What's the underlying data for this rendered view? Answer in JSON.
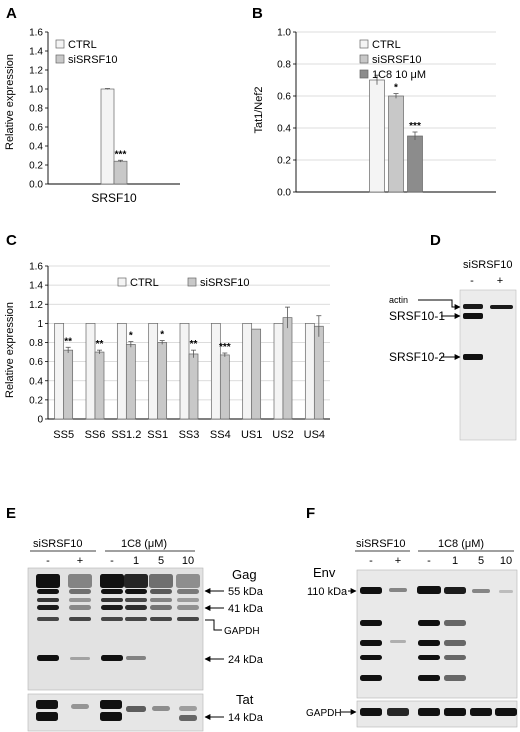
{
  "panels": {
    "A": {
      "label": "A"
    },
    "B": {
      "label": "B"
    },
    "C": {
      "label": "C"
    },
    "D": {
      "label": "D"
    },
    "E": {
      "label": "E"
    },
    "F": {
      "label": "F"
    }
  },
  "chart_data": [
    {
      "panel": "A",
      "type": "bar",
      "categories": [
        "SRSF10"
      ],
      "series": [
        {
          "name": "CTRL",
          "values": [
            1.0
          ],
          "errors": [
            0.005
          ],
          "color": "#f4f4f4",
          "stars": [
            ""
          ]
        },
        {
          "name": "siSRSF10",
          "values": [
            0.24
          ],
          "errors": [
            0.01
          ],
          "color": "#c8c8c8",
          "stars": [
            "***"
          ]
        }
      ],
      "ylabel": "Relative expression",
      "ylim": [
        0,
        1.6
      ],
      "yticks": [
        "0.0",
        "0.2",
        "0.4",
        "0.6",
        "0.8",
        "1.0",
        "1.2",
        "1.4",
        "1.6"
      ],
      "legend": "top-left"
    },
    {
      "panel": "B",
      "type": "bar",
      "categories": [
        ""
      ],
      "series": [
        {
          "name": "CTRL",
          "values": [
            0.7
          ],
          "errors": [
            0.03
          ],
          "color": "#f4f4f4",
          "stars": [
            ""
          ]
        },
        {
          "name": "siSRSF10",
          "values": [
            0.6
          ],
          "errors": [
            0.015
          ],
          "color": "#c8c8c8",
          "stars": [
            "*"
          ]
        },
        {
          "name": "1C8 10 μM",
          "values": [
            0.35
          ],
          "errors": [
            0.025
          ],
          "color": "#8c8c8c",
          "stars": [
            "***"
          ]
        }
      ],
      "ylabel": "Tat1/Nef2",
      "ylim": [
        0,
        1.0
      ],
      "yticks": [
        "0.0",
        "0.2",
        "0.4",
        "0.6",
        "0.8",
        "1.0"
      ],
      "legend": "top-right"
    },
    {
      "panel": "C",
      "type": "bar",
      "categories": [
        "SS5",
        "SS6",
        "SS1.2",
        "SS1",
        "SS3",
        "SS4",
        "US1",
        "US2",
        "US4"
      ],
      "series": [
        {
          "name": "CTRL",
          "values": [
            1,
            1,
            1,
            1,
            1,
            1,
            1,
            1,
            1
          ],
          "errors": [
            0,
            0,
            0,
            0,
            0,
            0,
            0,
            0,
            0
          ],
          "color": "#f4f4f4",
          "stars": [
            "",
            "",
            "",
            "",
            "",
            "",
            "",
            "",
            ""
          ]
        },
        {
          "name": "siSRSF10",
          "values": [
            0.72,
            0.7,
            0.78,
            0.8,
            0.68,
            0.67,
            0.94,
            1.06,
            0.97
          ],
          "errors": [
            0.03,
            0.02,
            0.03,
            0.02,
            0.04,
            0.02,
            0,
            0.11,
            0.11
          ],
          "color": "#c8c8c8",
          "stars": [
            "**",
            "**",
            "*",
            "*",
            "**",
            "***",
            "",
            "",
            ""
          ]
        }
      ],
      "ylabel": "Relative expression",
      "ylim": [
        0,
        1.6
      ],
      "yticks": [
        "0",
        "0.2",
        "0.4",
        "0.6",
        "0.8",
        "1",
        "1.2",
        "1.4",
        "1.6"
      ],
      "legend": "top-center"
    }
  ],
  "blotD": {
    "header": "siSRSF10",
    "lanes": [
      "-",
      "+"
    ],
    "labels": {
      "actin": "actin",
      "srsf10_1": "SRSF10-1",
      "srsf10_2": "SRSF10-2"
    }
  },
  "blotE": {
    "group1": "siSRSF10",
    "group2": "1C8 (μM)",
    "lanes": [
      "-",
      "+",
      "-",
      "1",
      "5",
      "10"
    ],
    "gag": "Gag",
    "gapdh": "GAPDH",
    "tat": "Tat",
    "kda55": "55 kDa",
    "kda41": "41 kDa",
    "kda24": "24 kDa",
    "kda14": "14 kDa"
  },
  "blotF": {
    "group1": "siSRSF10",
    "group2": "1C8 (μM)",
    "lanes": [
      "-",
      "+",
      "-",
      "1",
      "5",
      "10"
    ],
    "env": "Env",
    "kda110": "110 kDa",
    "gapdh": "GAPDH"
  }
}
